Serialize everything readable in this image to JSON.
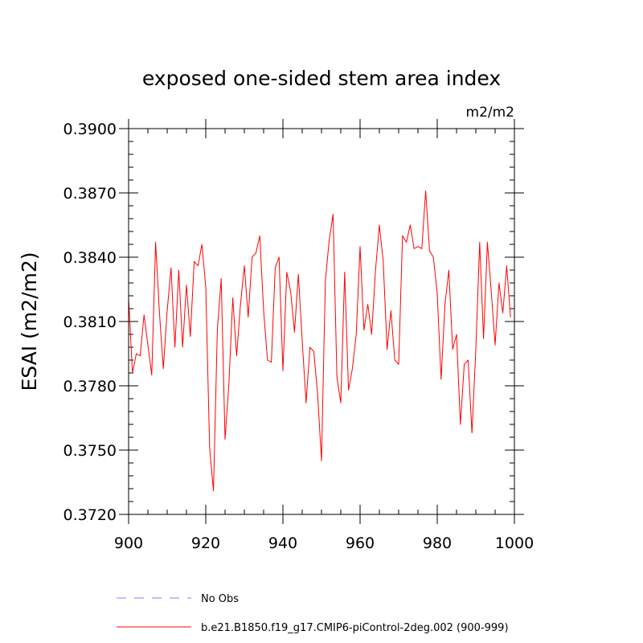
{
  "chart_data": {
    "type": "line",
    "title": "exposed one-sided stem area index",
    "units_label": "m2/m2",
    "xlabel": "",
    "ylabel": "ESAI  (m2/m2)",
    "xlim": [
      900,
      1000
    ],
    "ylim": [
      0.372,
      0.39
    ],
    "x_ticks": [
      900,
      920,
      940,
      960,
      980,
      1000
    ],
    "x_tick_labels": [
      "900",
      "920",
      "940",
      "960",
      "980",
      "1000"
    ],
    "y_ticks": [
      0.372,
      0.375,
      0.378,
      0.381,
      0.384,
      0.387,
      0.39
    ],
    "y_tick_labels": [
      "0.3720",
      "0.3750",
      "0.3780",
      "0.3810",
      "0.3840",
      "0.3870",
      "0.3900"
    ],
    "legend": [
      {
        "label": "No Obs",
        "color": "#8080ff",
        "style": "dashed"
      },
      {
        "label": "b.e21.B1850.f19_g17.CMIP6-piControl-2deg.002 (900-999)",
        "color": "#ff0000",
        "style": "solid"
      }
    ],
    "series": [
      {
        "name": "b.e21.B1850.f19_g17.CMIP6-piControl-2deg.002 (900-999)",
        "color": "#ff0000",
        "x_start": 900,
        "x_step": 1,
        "values": [
          0.3821,
          0.3786,
          0.3795,
          0.3794,
          0.3813,
          0.3799,
          0.3785,
          0.3847,
          0.3814,
          0.3788,
          0.3815,
          0.3835,
          0.3798,
          0.3834,
          0.3798,
          0.3827,
          0.3803,
          0.3838,
          0.3836,
          0.3846,
          0.3826,
          0.3751,
          0.3731,
          0.3806,
          0.383,
          0.3755,
          0.3781,
          0.3821,
          0.3794,
          0.3818,
          0.3836,
          0.3812,
          0.384,
          0.3842,
          0.385,
          0.3815,
          0.3792,
          0.3791,
          0.3835,
          0.384,
          0.3787,
          0.3833,
          0.3824,
          0.3805,
          0.3832,
          0.3801,
          0.3772,
          0.3798,
          0.3796,
          0.3776,
          0.3745,
          0.3829,
          0.3848,
          0.386,
          0.3784,
          0.3772,
          0.3833,
          0.3778,
          0.3788,
          0.3804,
          0.3845,
          0.3806,
          0.3818,
          0.3804,
          0.3834,
          0.3855,
          0.3838,
          0.3797,
          0.3815,
          0.3792,
          0.379,
          0.385,
          0.3847,
          0.3855,
          0.3844,
          0.3845,
          0.3844,
          0.3871,
          0.3843,
          0.384,
          0.3823,
          0.3783,
          0.3818,
          0.3834,
          0.3797,
          0.3804,
          0.3762,
          0.379,
          0.3792,
          0.3758,
          0.3797,
          0.3847,
          0.3802,
          0.3847,
          0.3824,
          0.3799,
          0.3828,
          0.3814,
          0.3836,
          0.3812
        ]
      }
    ]
  }
}
